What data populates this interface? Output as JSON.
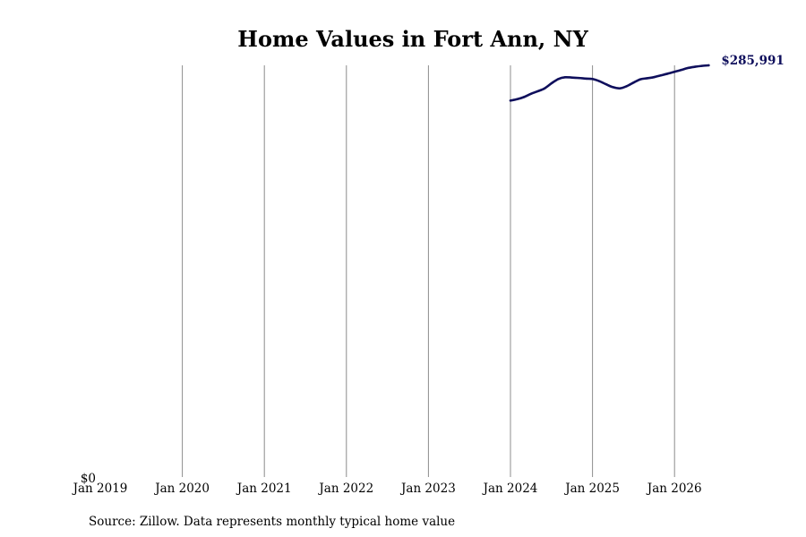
{
  "chart_data": {
    "type": "line",
    "title": "Home Values in Fort Ann, NY",
    "xlabel": "",
    "ylabel": "",
    "x_ticks": [
      "Jan 2019",
      "Jan 2020",
      "Jan 2021",
      "Jan 2022",
      "Jan 2023",
      "Jan 2024",
      "Jan 2025",
      "Jan 2026"
    ],
    "y_ticks": [
      {
        "value": 0,
        "label": "$0"
      }
    ],
    "ylim": [
      0,
      285991
    ],
    "xlim": [
      "2019-01",
      "2026-07"
    ],
    "grid": "vertical",
    "series": [
      {
        "color": "#0f0f5c",
        "end_label": "$285,991",
        "points": [
          {
            "x": "2024-01",
            "y": 261500
          },
          {
            "x": "2024-02",
            "y": 262500
          },
          {
            "x": "2024-03",
            "y": 264000
          },
          {
            "x": "2024-04",
            "y": 266200
          },
          {
            "x": "2024-05",
            "y": 268000
          },
          {
            "x": "2024-06",
            "y": 270000
          },
          {
            "x": "2024-07",
            "y": 273500
          },
          {
            "x": "2024-08",
            "y": 276500
          },
          {
            "x": "2024-09",
            "y": 277700
          },
          {
            "x": "2024-10",
            "y": 277500
          },
          {
            "x": "2024-11",
            "y": 277200
          },
          {
            "x": "2024-12",
            "y": 276800
          },
          {
            "x": "2025-01",
            "y": 276500
          },
          {
            "x": "2025-02",
            "y": 275000
          },
          {
            "x": "2025-03",
            "y": 272800
          },
          {
            "x": "2025-04",
            "y": 270800
          },
          {
            "x": "2025-05",
            "y": 270000
          },
          {
            "x": "2025-06",
            "y": 271500
          },
          {
            "x": "2025-07",
            "y": 274000
          },
          {
            "x": "2025-08",
            "y": 276300
          },
          {
            "x": "2025-09",
            "y": 277000
          },
          {
            "x": "2025-10",
            "y": 277800
          },
          {
            "x": "2025-11",
            "y": 279000
          },
          {
            "x": "2025-12",
            "y": 280200
          },
          {
            "x": "2026-01",
            "y": 281500
          },
          {
            "x": "2026-02",
            "y": 282800
          },
          {
            "x": "2026-03",
            "y": 284200
          },
          {
            "x": "2026-04",
            "y": 285000
          },
          {
            "x": "2026-05",
            "y": 285600
          },
          {
            "x": "2026-06",
            "y": 285991
          }
        ]
      }
    ]
  },
  "footer": {
    "source": "Source: Zillow. Data represents monthly typical home value"
  }
}
